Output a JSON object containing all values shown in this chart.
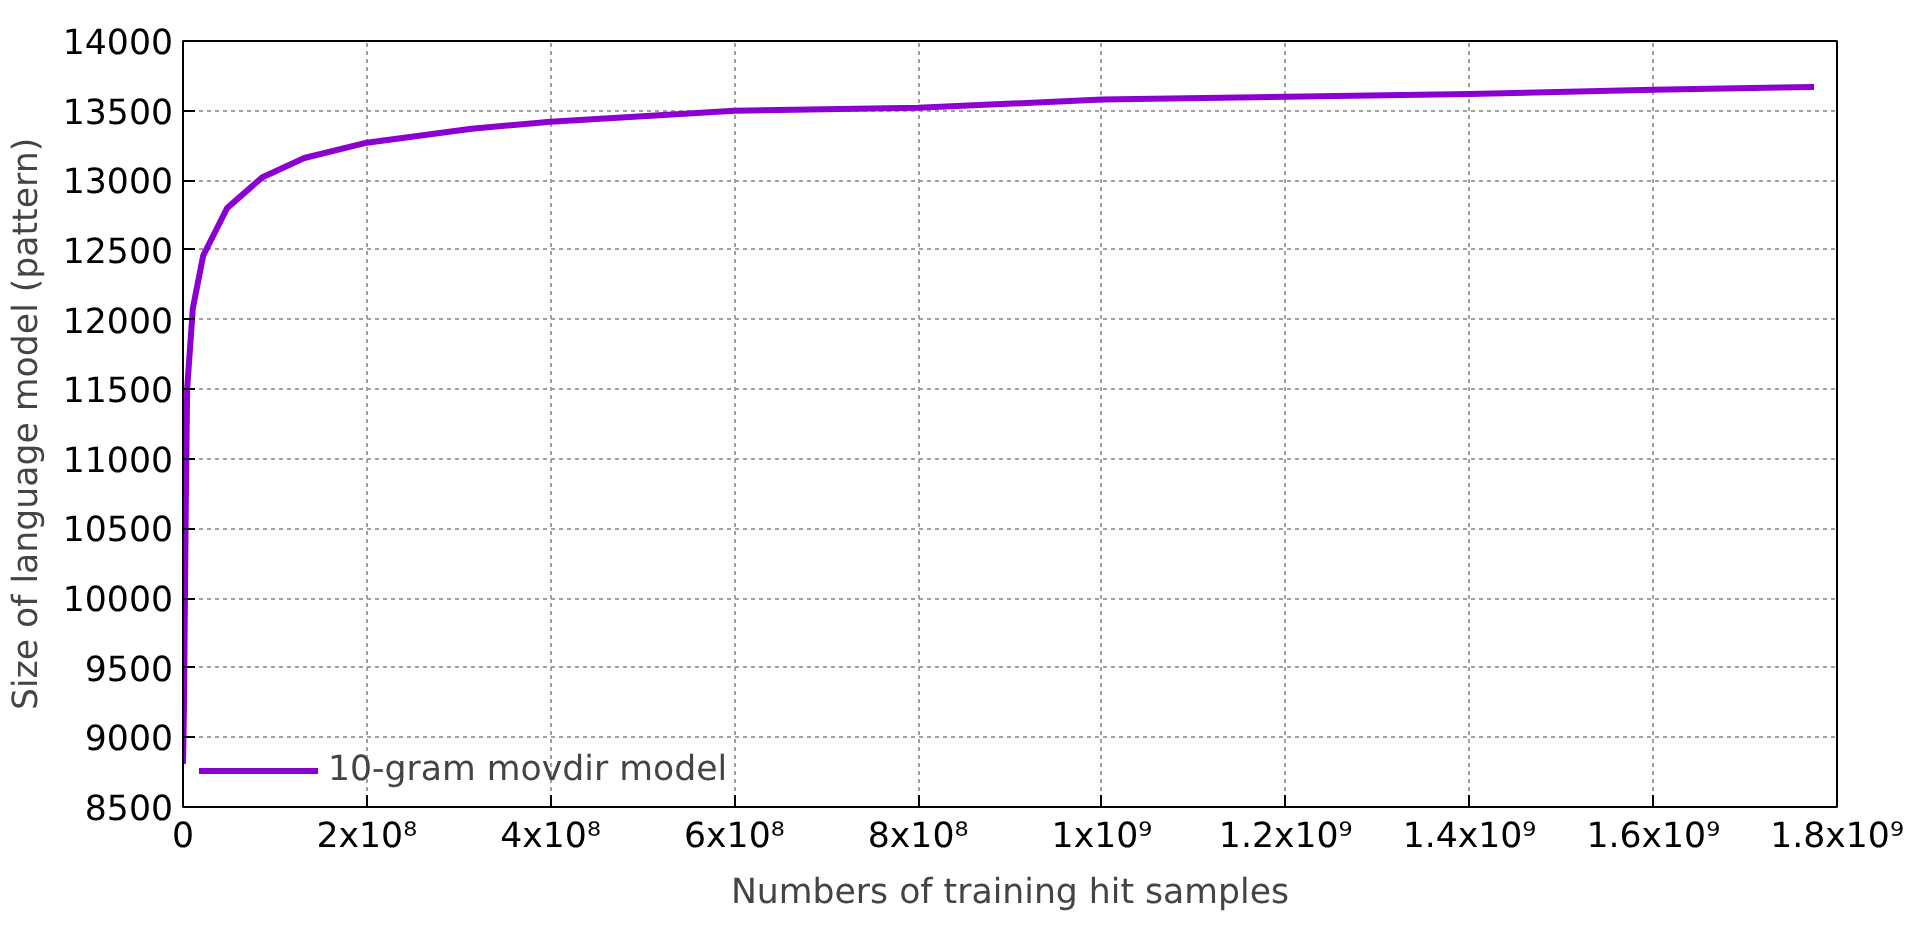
{
  "chart_data": {
    "type": "line",
    "xlabel": "Numbers of training hit samples",
    "ylabel": "Size of language model (pattern)",
    "series": [
      {
        "name": "10-gram movdir model",
        "color": "#8b00d0",
        "x": [
          0,
          1000000,
          3000000,
          4500000,
          10700000,
          22000000,
          48000000,
          86000000,
          132000000,
          200000000,
          314000000,
          400000000,
          600000000,
          800000000,
          1000000000,
          1200000000,
          1400000000,
          1600000000,
          1775000000
        ],
        "values": [
          8810,
          9200,
          10640,
          11500,
          12080,
          12460,
          12800,
          13020,
          13160,
          13270,
          13370,
          13420,
          13500,
          13520,
          13580,
          13600,
          13620,
          13650,
          13670
        ]
      }
    ],
    "xlim": [
      0,
      1800000000
    ],
    "xticks": [
      0,
      {
        "value": 200000000,
        "label": "2x10⁸"
      },
      {
        "value": 400000000,
        "label": "4x10⁸"
      },
      {
        "value": 600000000,
        "label": "6x10⁸"
      },
      {
        "value": 800000000,
        "label": "8x10⁸"
      },
      {
        "value": 1000000000,
        "label": "1x10⁹"
      },
      {
        "value": 1200000000,
        "label": "1.2x10⁹"
      },
      {
        "value": 1400000000,
        "label": "1.4x10⁹"
      },
      {
        "value": 1600000000,
        "label": "1.6x10⁹"
      },
      {
        "value": 1800000000,
        "label": "1.8x10⁹"
      }
    ],
    "ylim": [
      8500,
      14000
    ],
    "yticks": [
      8500,
      9000,
      9500,
      10000,
      10500,
      11000,
      11500,
      12000,
      12500,
      13000,
      13500,
      14000
    ],
    "grid": true,
    "legend": "bottom left",
    "line_style": "solid",
    "marker": "none"
  }
}
